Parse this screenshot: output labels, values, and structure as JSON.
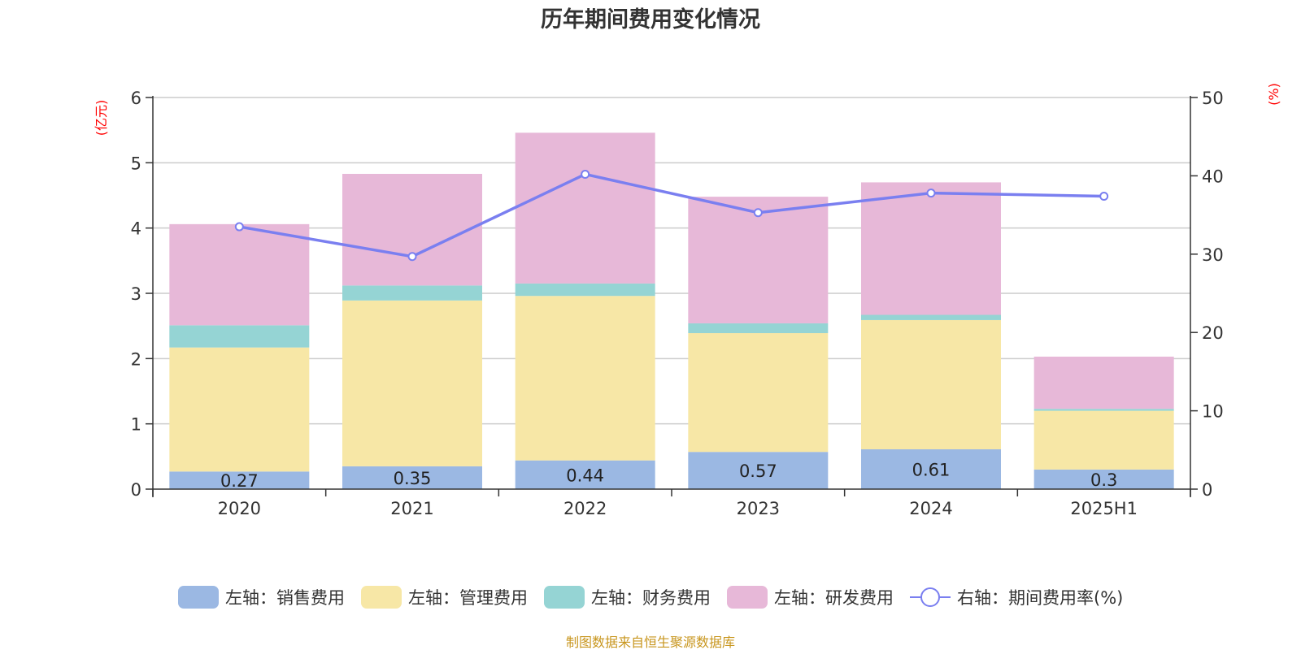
{
  "chart_data": {
    "type": "bar",
    "title": "历年期间费用变化情况",
    "categories": [
      "2020",
      "2021",
      "2022",
      "2023",
      "2024",
      "2025H1"
    ],
    "left_axis_label": "(亿元)",
    "right_axis_label": "(%)",
    "ylim_left": [
      0,
      6
    ],
    "yticks_left": [
      "0",
      "1",
      "2",
      "3",
      "4",
      "5",
      "6"
    ],
    "ylim_right": [
      0,
      50
    ],
    "yticks_right": [
      "0",
      "10",
      "20",
      "30",
      "40",
      "50"
    ],
    "grid": true,
    "stacked": true,
    "legend_position": "bottom",
    "series": [
      {
        "name": "左轴：销售费用",
        "axis": "left",
        "kind": "bar",
        "color": "#9bb8e3",
        "values": [
          0.27,
          0.35,
          0.44,
          0.57,
          0.61,
          0.3
        ],
        "labels": [
          "0.27",
          "0.35",
          "0.44",
          "0.57",
          "0.61",
          "0.3"
        ]
      },
      {
        "name": "左轴：管理费用",
        "axis": "left",
        "kind": "bar",
        "color": "#f7e7a6",
        "values": [
          1.9,
          2.54,
          2.52,
          1.82,
          1.98,
          0.9
        ]
      },
      {
        "name": "左轴：财务费用",
        "axis": "left",
        "kind": "bar",
        "color": "#95d4d4",
        "values": [
          0.34,
          0.23,
          0.19,
          0.15,
          0.08,
          0.03
        ]
      },
      {
        "name": "左轴：研发费用",
        "axis": "left",
        "kind": "bar",
        "color": "#e7b8d8",
        "values": [
          1.55,
          1.71,
          2.31,
          1.94,
          2.03,
          0.8
        ]
      },
      {
        "name": "右轴：期间费用率(%)",
        "axis": "right",
        "kind": "line",
        "color": "#7a7ff0",
        "values": [
          33.5,
          29.7,
          40.2,
          35.3,
          37.8,
          37.4
        ]
      }
    ],
    "source": "制图数据来自恒生聚源数据库"
  }
}
